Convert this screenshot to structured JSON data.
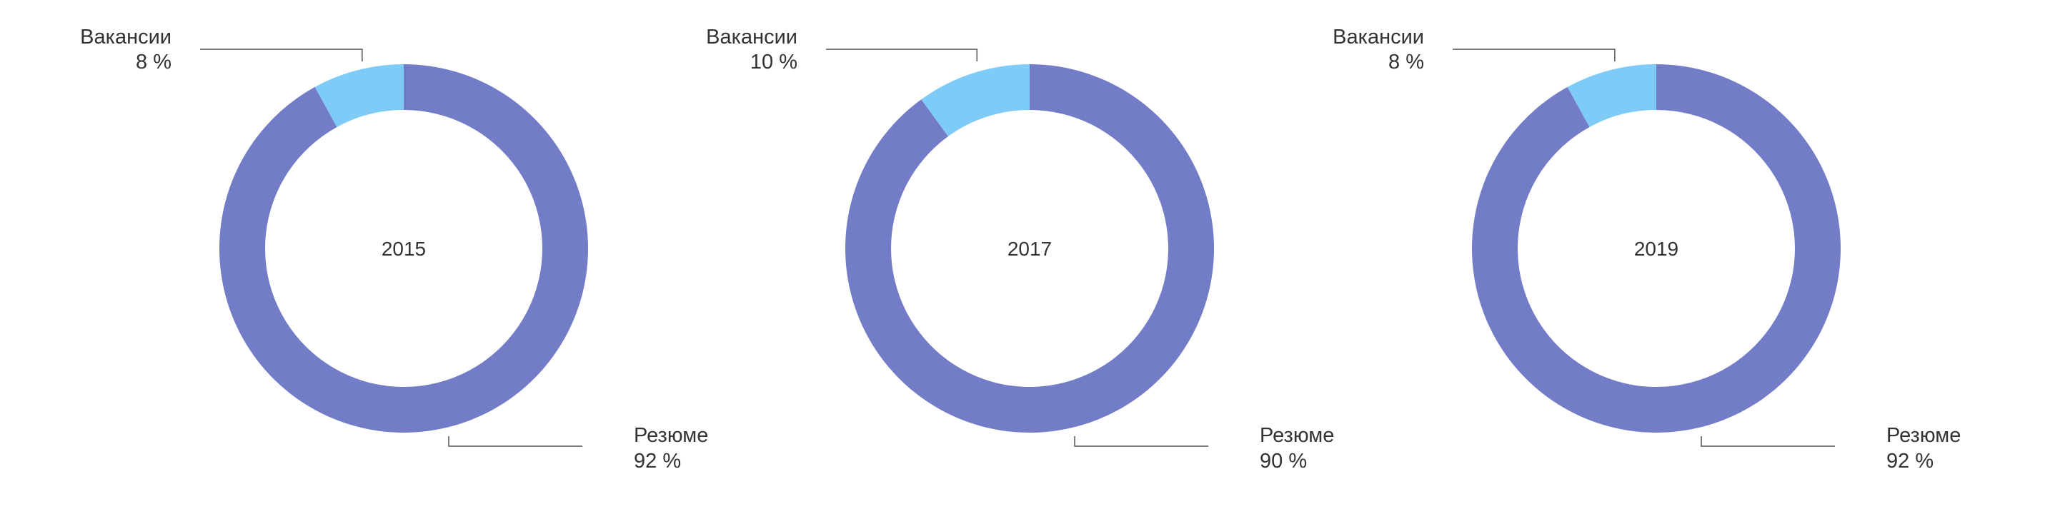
{
  "colors": {
    "resume": "#727cc7",
    "vacancies": "#7ecbf7",
    "text": "#333333",
    "leader_line": "#555555"
  },
  "chart_data": [
    {
      "type": "pie",
      "variant": "donut",
      "center_label": "2015",
      "slices": [
        {
          "label": "Резюме",
          "value": 92,
          "value_label": "92 %",
          "color": "#727cc7"
        },
        {
          "label": "Вакансии",
          "value": 8,
          "value_label": "8 %",
          "color": "#7ecbf7"
        }
      ]
    },
    {
      "type": "pie",
      "variant": "donut",
      "center_label": "2017",
      "slices": [
        {
          "label": "Резюме",
          "value": 90,
          "value_label": "90 %",
          "color": "#727cc7"
        },
        {
          "label": "Вакансии",
          "value": 10,
          "value_label": "10 %",
          "color": "#7ecbf7"
        }
      ]
    },
    {
      "type": "pie",
      "variant": "donut",
      "center_label": "2019",
      "slices": [
        {
          "label": "Резюме",
          "value": 92,
          "value_label": "92 %",
          "color": "#727cc7"
        },
        {
          "label": "Вакансии",
          "value": 8,
          "value_label": "8 %",
          "color": "#7ecbf7"
        }
      ]
    }
  ]
}
